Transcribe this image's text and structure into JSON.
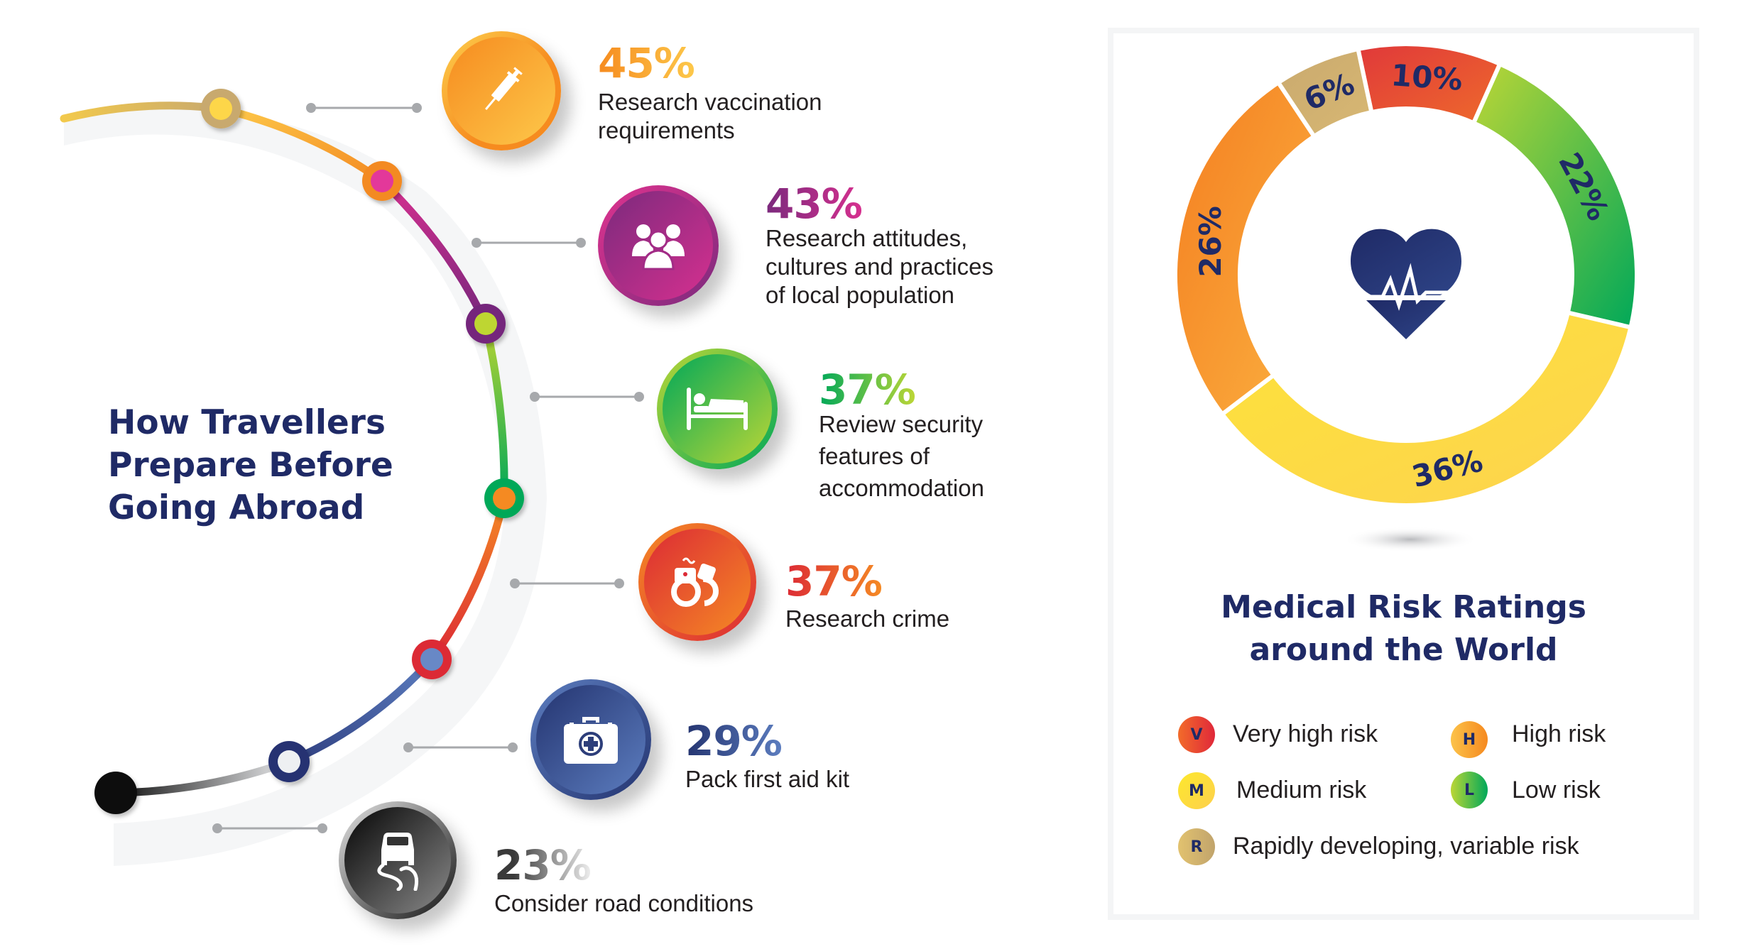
{
  "left": {
    "title_lines": [
      "How Travellers",
      "Prepare Before",
      "Going Abroad"
    ],
    "items": [
      {
        "percent": "45%",
        "lines": [
          "Research vaccination",
          "requirements"
        ],
        "icon": "syringe-icon",
        "colors": [
          "#f68b1f",
          "#fdd04e"
        ]
      },
      {
        "percent": "43%",
        "lines": [
          "Research attitudes,",
          "cultures and practices",
          "of local population"
        ],
        "icon": "people-group-icon",
        "colors": [
          "#7b2a7d",
          "#e0338f"
        ]
      },
      {
        "percent": "37%",
        "lines": [
          "Review security",
          "features of",
          "accommodation"
        ],
        "icon": "bed-icon",
        "colors": [
          "#00a859",
          "#bcd636"
        ]
      },
      {
        "percent": "37%",
        "lines": [
          "Research crime"
        ],
        "icon": "handcuffs-icon",
        "colors": [
          "#dc2a35",
          "#f58a24"
        ]
      },
      {
        "percent": "29%",
        "lines": [
          "Pack first aid kit"
        ],
        "icon": "first-aid-kit-icon",
        "colors": [
          "#243470",
          "#5c7dbf"
        ]
      },
      {
        "percent": "23%",
        "lines": [
          "Consider road conditions"
        ],
        "icon": "slippery-road-icon",
        "colors": [
          "#1a1a1a",
          "#e6e6e6"
        ]
      }
    ]
  },
  "right": {
    "title_lines": [
      "Medical Risk Ratings",
      "around the World"
    ],
    "legend": [
      {
        "letter": "V",
        "label": "Very high risk",
        "colors": [
          "#f26b2a",
          "#e0283a"
        ]
      },
      {
        "letter": "H",
        "label": "High risk",
        "colors": [
          "#fcc34a",
          "#f5891f"
        ]
      },
      {
        "letter": "M",
        "label": "Medium risk",
        "colors": [
          "#fde82c",
          "#fdd04e"
        ]
      },
      {
        "letter": "L",
        "label": "Low risk",
        "colors": [
          "#bcd636",
          "#00a859"
        ]
      },
      {
        "letter": "R",
        "label": "Rapidly developing, variable risk",
        "colors": [
          "#e2c26f",
          "#c1a46c"
        ]
      }
    ],
    "center_icon": "heartbeat-icon"
  },
  "chart_data": {
    "type": "pie",
    "title": "Medical Risk Ratings around the World",
    "categories": [
      "Very high risk",
      "Low risk",
      "Medium risk",
      "High risk",
      "Rapidly developing, variable risk"
    ],
    "values": [
      10,
      22,
      36,
      26,
      6
    ],
    "labels": [
      "10%",
      "22%",
      "36%",
      "26%",
      "6%"
    ],
    "colors": [
      [
        "#e0383a",
        "#ee6a2c"
      ],
      [
        "#bcd636",
        "#00a859"
      ],
      [
        "#fde23a",
        "#fdd34f"
      ],
      [
        "#f47e20",
        "#fbb040"
      ],
      [
        "#c9a96e",
        "#d8b873"
      ]
    ],
    "donut": true,
    "legend": "bottom"
  }
}
